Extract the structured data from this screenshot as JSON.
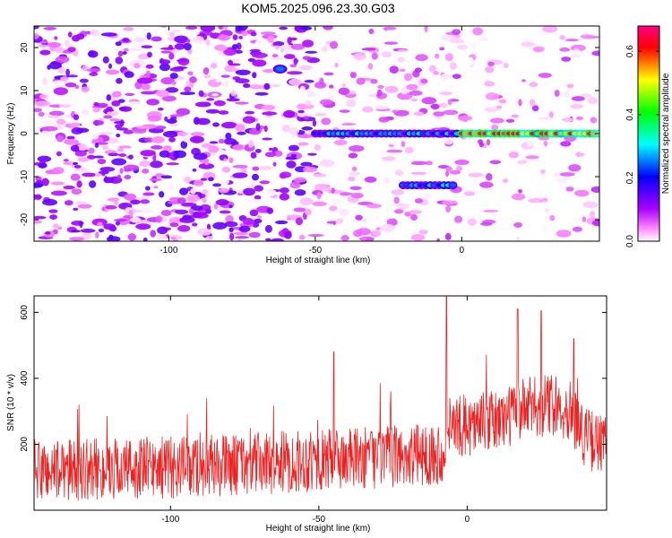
{
  "title": "KOM5.2025.096.23.30.G03",
  "colors": {
    "snr_line": "#ee2222",
    "frame": "#000000"
  },
  "chart_data": [
    {
      "type": "heatmap",
      "xlabel": "Height of straight line (km)",
      "ylabel": "Frequency (Hz)",
      "xlim": [
        -146,
        47
      ],
      "ylim": [
        -25,
        25
      ],
      "xticks": [
        -100,
        -50,
        0
      ],
      "xtick_labels": [
        "-100",
        "-50",
        "0"
      ],
      "yticks": [
        -20,
        -10,
        0,
        10,
        20
      ],
      "ytick_labels": [
        "-20",
        "-10",
        "0",
        "10",
        "20"
      ],
      "colorbar": {
        "label": "Normalized spectral amplitude",
        "range": [
          0.0,
          0.68
        ],
        "ticks": [
          0.0,
          0.2,
          0.4,
          0.6
        ],
        "tick_labels": [
          "0.0",
          "0.2",
          "0.4",
          "0.6"
        ],
        "colormap": [
          "#ffffff",
          "#ff00ff",
          "#0000ff",
          "#00ffff",
          "#00ff00",
          "#ffff00",
          "#ff0000",
          "#ff00ff"
        ]
      },
      "features": [
        {
          "x": [
            -50,
            0
          ],
          "y": 0,
          "amplitude": 0.25,
          "description": "emerging line at 0 Hz"
        },
        {
          "x": [
            0,
            47
          ],
          "y": 0,
          "amplitude": 0.6,
          "description": "strong line at 0 Hz"
        },
        {
          "x": [
            -20,
            -3
          ],
          "y": -12,
          "amplitude": 0.25
        },
        {
          "x": -62,
          "y": 15,
          "amplitude": 0.25
        }
      ]
    },
    {
      "type": "line",
      "xlabel": "Height of straight line (km)",
      "ylabel": "SNR (10 * v/v)",
      "xlim": [
        -146,
        47
      ],
      "ylim": [
        0,
        650
      ],
      "xticks": [
        -100,
        -50,
        0
      ],
      "xtick_labels": [
        "-100",
        "-50",
        "0"
      ],
      "yticks": [
        200,
        400,
        600
      ],
      "ytick_labels": [
        "200",
        "400",
        "600"
      ],
      "series": [
        {
          "x_range": [
            -146,
            47
          ],
          "baseline": [
            [
              -146,
              120
            ],
            [
              -100,
              130
            ],
            [
              -50,
              150
            ],
            [
              -20,
              165
            ],
            [
              -8,
              175
            ],
            [
              -7,
              250
            ],
            [
              10,
              270
            ],
            [
              20,
              310
            ],
            [
              30,
              320
            ],
            [
              35,
              300
            ],
            [
              40,
              220
            ],
            [
              47,
              190
            ]
          ],
          "noise_amplitude": 95,
          "peaks": [
            [
              -7,
              650
            ],
            [
              -45,
              480
            ],
            [
              17,
              610
            ],
            [
              25,
              605
            ],
            [
              36,
              520
            ]
          ]
        }
      ]
    }
  ]
}
